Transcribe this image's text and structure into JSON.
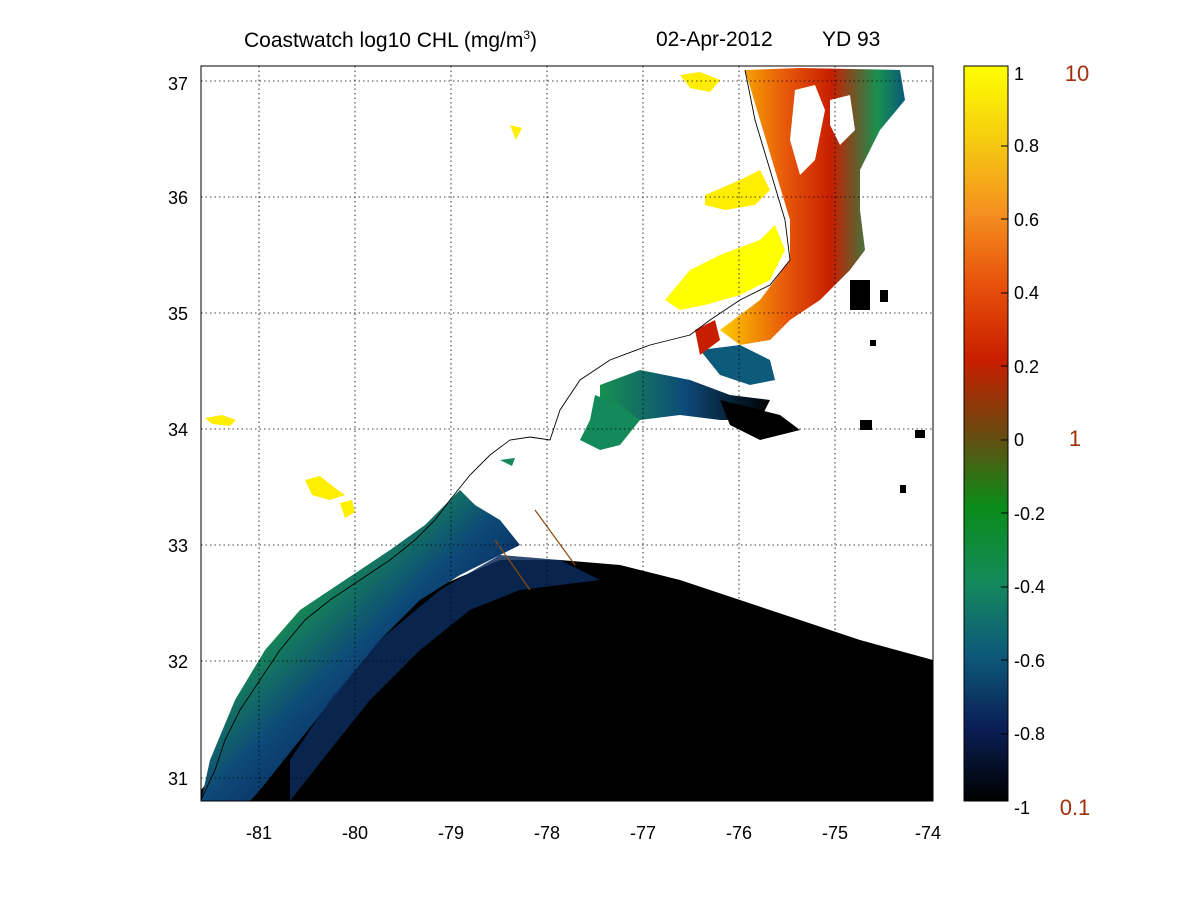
{
  "title": {
    "main": "Coastwatch  log10  CHL (mg/m",
    "main_sup": "3",
    "main_end": ")",
    "date": "02-Apr-2012",
    "yearday": "YD 93"
  },
  "map": {
    "lon_range": [
      -81.6,
      -74
    ],
    "lat_range": [
      30.8,
      37.15
    ],
    "lon_ticks": [
      "-81",
      "-80",
      "-79",
      "-78",
      "-77",
      "-76",
      "-75",
      "-74"
    ],
    "lat_ticks": [
      "31",
      "32",
      "33",
      "34",
      "35",
      "36",
      "37"
    ],
    "grid": "dotted",
    "land_color": "#ffffff",
    "cloud_color": "#ffffff"
  },
  "colorbar": {
    "range": [
      -1,
      1
    ],
    "ticks": [
      "1",
      "0.8",
      "0.6",
      "0.4",
      "0.2",
      "0",
      "-0.2",
      "-0.4",
      "-0.6",
      "-0.8",
      "-1"
    ],
    "linear_labels": [
      "10",
      "1",
      "0.1"
    ],
    "linear_label_color": "#a0300a",
    "colormap": [
      "#000000",
      "#0a1f55",
      "#0d5a7a",
      "#148a5a",
      "#0a8c1a",
      "#6a4a10",
      "#c81e00",
      "#e8500a",
      "#f59020",
      "#f5cc10",
      "#ffff00"
    ]
  }
}
